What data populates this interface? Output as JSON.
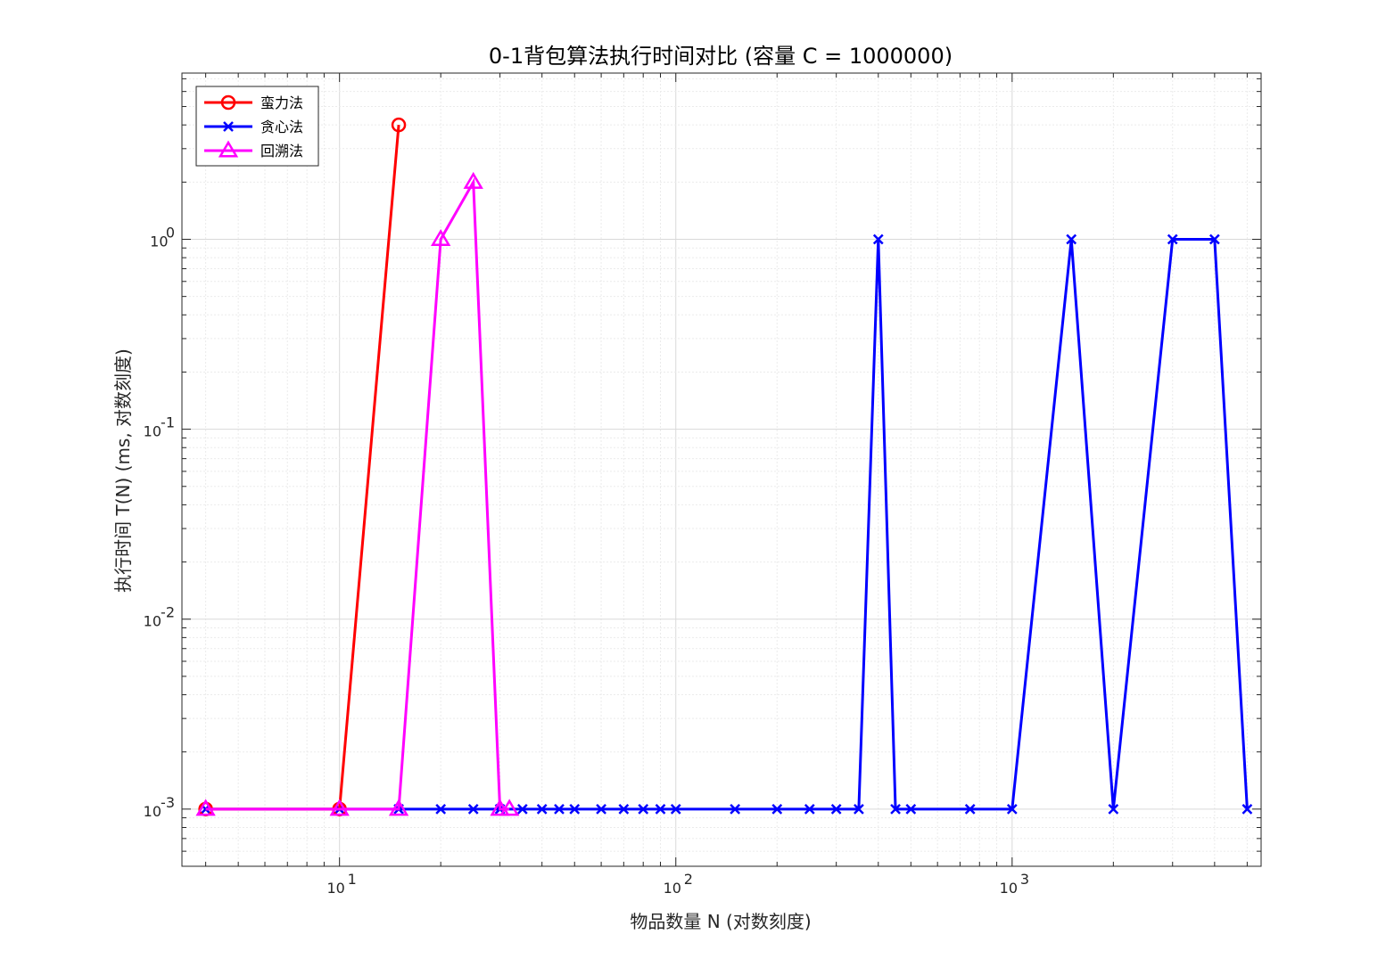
{
  "chart_data": {
    "type": "line",
    "title": "0-1背包算法执行时间对比 (容量 C = 1000000)",
    "xlabel": "物品数量 N (对数刻度)",
    "ylabel": "执行时间 T(N) (ms, 对数刻度)",
    "xscale": "log",
    "yscale": "log",
    "xlim": [
      3.4,
      5500
    ],
    "ylim": [
      0.0005,
      7.5
    ],
    "x_tick_labels": [
      {
        "base": "10",
        "exp": "1",
        "value": 10
      },
      {
        "base": "10",
        "exp": "2",
        "value": 100
      },
      {
        "base": "10",
        "exp": "3",
        "value": 1000
      }
    ],
    "y_tick_labels": [
      {
        "base": "10",
        "exp": "-3",
        "value": 0.001
      },
      {
        "base": "10",
        "exp": "-2",
        "value": 0.01
      },
      {
        "base": "10",
        "exp": "-1",
        "value": 0.1
      },
      {
        "base": "10",
        "exp": "0",
        "value": 1
      }
    ],
    "grid": true,
    "legend_position": "top-left",
    "series": [
      {
        "name": "蛮力法",
        "color": "#ff0000",
        "marker": "circle",
        "x": [
          4,
          10,
          15
        ],
        "y": [
          0.001,
          0.001,
          4
        ]
      },
      {
        "name": "贪心法",
        "color": "#0000ff",
        "marker": "x",
        "x": [
          4,
          10,
          15,
          20,
          25,
          30,
          35,
          40,
          45,
          50,
          60,
          70,
          80,
          90,
          100,
          150,
          200,
          250,
          300,
          350,
          400,
          450,
          500,
          750,
          1000,
          1500,
          2000,
          3000,
          4000,
          5000
        ],
        "y": [
          0.001,
          0.001,
          0.001,
          0.001,
          0.001,
          0.001,
          0.001,
          0.001,
          0.001,
          0.001,
          0.001,
          0.001,
          0.001,
          0.001,
          0.001,
          0.001,
          0.001,
          0.001,
          0.001,
          0.001,
          1,
          0.001,
          0.001,
          0.001,
          0.001,
          1,
          0.001,
          1,
          1,
          0.001
        ]
      },
      {
        "name": "回溯法",
        "color": "#ff00ff",
        "marker": "triangle",
        "x": [
          4,
          10,
          15,
          20,
          25,
          30,
          32
        ],
        "y": [
          0.001,
          0.001,
          0.001,
          1,
          2,
          0.001,
          0.001
        ]
      }
    ]
  }
}
